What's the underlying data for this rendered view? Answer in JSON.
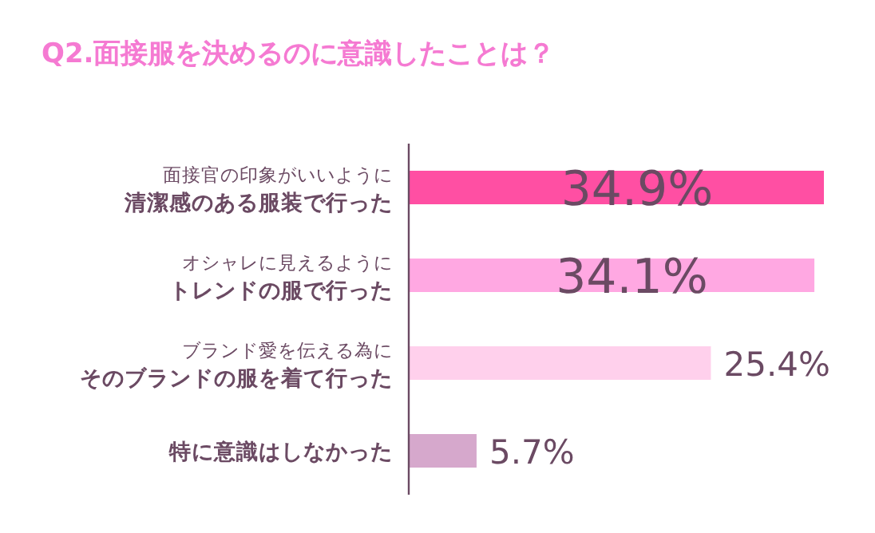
{
  "chart_data": {
    "type": "bar",
    "orientation": "horizontal",
    "title": "Q2.面接服を決めるのに意識したことは？",
    "categories": [
      "清潔感のある服装で行った",
      "トレンドの服で行った",
      "そのブランドの服を着て行った",
      "特に意識はしなかった"
    ],
    "annotations": [
      "面接官の印象がいいように",
      "オシャレに見えるように",
      "ブランド愛を伝える為に"
    ],
    "values": [
      34.9,
      34.1,
      25.4,
      5.7
    ],
    "value_labels": [
      "34.9%",
      "34.1%",
      "25.4%",
      "5.7%"
    ],
    "colors": [
      "#ff4fa3",
      "#ffa8e2",
      "#ffd0ec",
      "#d6a8cc"
    ]
  }
}
